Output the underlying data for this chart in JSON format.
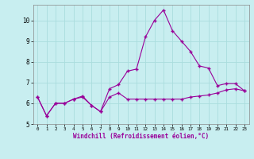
{
  "xlabel": "Windchill (Refroidissement éolien,°C)",
  "x": [
    0,
    1,
    2,
    3,
    4,
    5,
    6,
    7,
    8,
    9,
    10,
    11,
    12,
    13,
    14,
    15,
    16,
    17,
    18,
    19,
    20,
    21,
    22,
    23
  ],
  "line1": [
    6.3,
    5.4,
    6.0,
    6.0,
    6.2,
    6.3,
    5.9,
    5.6,
    6.3,
    6.5,
    6.2,
    6.2,
    6.2,
    6.2,
    6.2,
    6.2,
    6.2,
    6.3,
    6.35,
    6.4,
    6.5,
    6.65,
    6.7,
    6.6
  ],
  "line2": [
    6.3,
    5.4,
    6.0,
    6.0,
    6.2,
    6.35,
    5.9,
    5.6,
    6.7,
    6.9,
    7.55,
    7.65,
    9.2,
    10.0,
    10.5,
    9.5,
    9.0,
    8.5,
    7.8,
    7.7,
    6.85,
    6.95,
    6.95,
    6.6
  ],
  "line_color": "#990099",
  "bg_color": "#c8eef0",
  "grid_color": "#aadddd",
  "ylim": [
    5.0,
    10.75
  ],
  "yticks": [
    5,
    6,
    7,
    8,
    9,
    10
  ],
  "xtick_labels": [
    "0",
    "1",
    "2",
    "3",
    "4",
    "5",
    "6",
    "7",
    "8",
    "9",
    "10",
    "11",
    "12",
    "13",
    "14",
    "15",
    "16",
    "17",
    "18",
    "19",
    "20",
    "21",
    "22",
    "23"
  ],
  "marker": "+"
}
